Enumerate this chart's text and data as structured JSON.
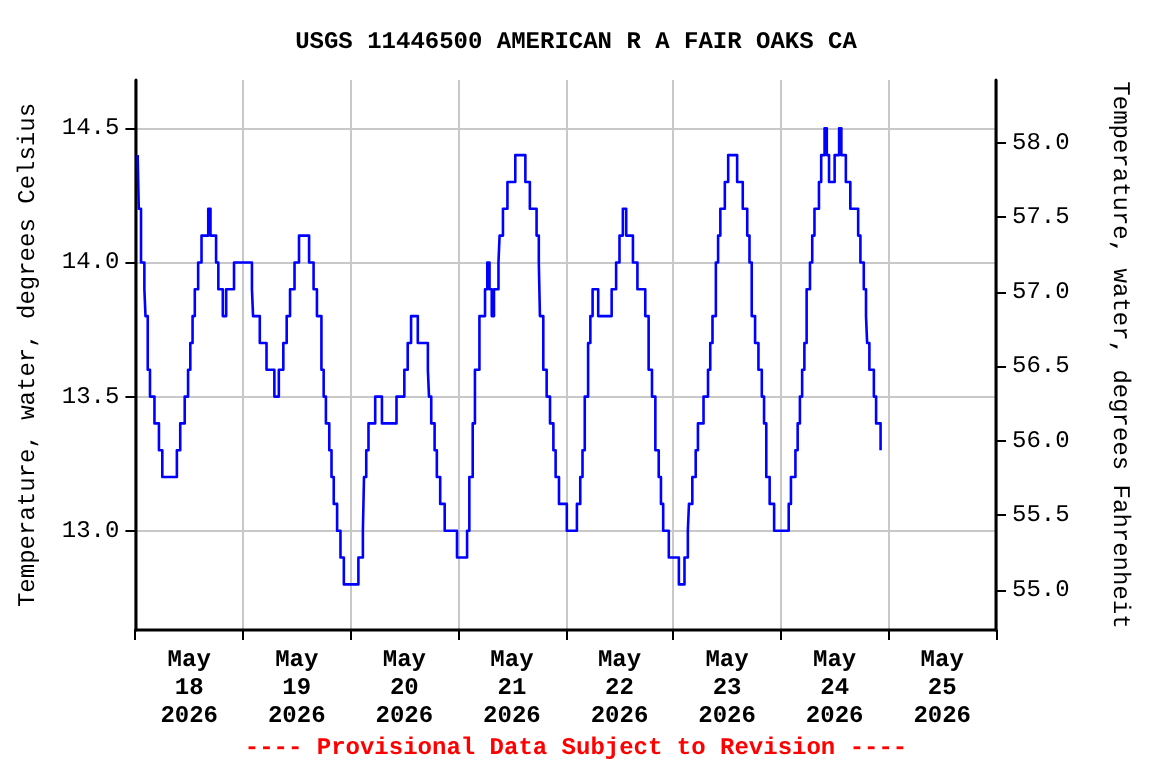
{
  "chart_data": {
    "type": "step",
    "title": "USGS 11446500 AMERICAN R A FAIR OAKS CA",
    "ylabel": "Temperature, water, degrees Celsius",
    "y2label": "Temperature, water, degrees Fahrenheit",
    "annotations": [
      "---- Provisional Data Subject to Revision ----"
    ],
    "xlim": [
      "2026-05-18T00:00",
      "2026-05-26T00:00"
    ],
    "xticks": [
      {
        "value": "2026-05-18T00:00",
        "label": null
      },
      {
        "value": "2026-05-18T12:00",
        "label": "May\n18\n2026"
      },
      {
        "value": "2026-05-19T00:00",
        "label": null
      },
      {
        "value": "2026-05-19T12:00",
        "label": "May\n19\n2026"
      },
      {
        "value": "2026-05-20T00:00",
        "label": null
      },
      {
        "value": "2026-05-20T12:00",
        "label": "May\n20\n2026"
      },
      {
        "value": "2026-05-21T00:00",
        "label": null
      },
      {
        "value": "2026-05-21T12:00",
        "label": "May\n21\n2026"
      },
      {
        "value": "2026-05-22T00:00",
        "label": null
      },
      {
        "value": "2026-05-22T12:00",
        "label": "May\n22\n2026"
      },
      {
        "value": "2026-05-23T00:00",
        "label": null
      },
      {
        "value": "2026-05-23T12:00",
        "label": "May\n23\n2026"
      },
      {
        "value": "2026-05-24T00:00",
        "label": null
      },
      {
        "value": "2026-05-24T12:00",
        "label": "May\n24\n2026"
      },
      {
        "value": "2026-05-25T00:00",
        "label": null
      },
      {
        "value": "2026-05-25T12:00",
        "label": "May\n25\n2026"
      },
      {
        "value": "2026-05-26T00:00",
        "label": null
      }
    ],
    "ylim": [
      12.63,
      14.68
    ],
    "yticks": [
      {
        "value": 13,
        "label": "13.0"
      },
      {
        "value": 13.5,
        "label": "13.5"
      },
      {
        "value": 14,
        "label": "14.0"
      },
      {
        "value": 14.5,
        "label": "14.5"
      }
    ],
    "y2lim": [
      54.73,
      58.42
    ],
    "y2ticks": [
      {
        "value": 55,
        "label": "55.0"
      },
      {
        "value": 55.5,
        "label": "55.5"
      },
      {
        "value": 56,
        "label": "56.0"
      },
      {
        "value": 56.5,
        "label": "56.5"
      },
      {
        "value": 57,
        "label": "57.0"
      },
      {
        "value": 57.5,
        "label": "57.5"
      },
      {
        "value": 58,
        "label": "58.0"
      }
    ],
    "grid": true,
    "series": [
      {
        "color": "#0000ff",
        "x": [
          "2026-05-18T00:30",
          "2026-05-18T00:45",
          "2026-05-18T01:15",
          "2026-05-18T02:00",
          "2026-05-18T02:15",
          "2026-05-18T02:45",
          "2026-05-18T03:15",
          "2026-05-18T04:15",
          "2026-05-18T05:15",
          "2026-05-18T06:00",
          "2026-05-18T09:15",
          "2026-05-18T10:00",
          "2026-05-18T11:00",
          "2026-05-18T11:45",
          "2026-05-18T12:15",
          "2026-05-18T12:45",
          "2026-05-18T13:15",
          "2026-05-18T14:00",
          "2026-05-18T14:45",
          "2026-05-18T16:15",
          "2026-05-18T16:45",
          "2026-05-18T18:00",
          "2026-05-18T18:30",
          "2026-05-18T19:30",
          "2026-05-18T20:15",
          "2026-05-18T22:00",
          "2026-05-19T02:00",
          "2026-05-19T02:15",
          "2026-05-19T03:45",
          "2026-05-19T05:15",
          "2026-05-19T07:00",
          "2026-05-19T08:00",
          "2026-05-19T09:00",
          "2026-05-19T09:45",
          "2026-05-19T10:30",
          "2026-05-19T11:30",
          "2026-05-19T12:30",
          "2026-05-19T14:45",
          "2026-05-19T15:45",
          "2026-05-19T16:30",
          "2026-05-19T17:30",
          "2026-05-19T18:00",
          "2026-05-19T18:30",
          "2026-05-19T19:15",
          "2026-05-19T19:45",
          "2026-05-19T20:15",
          "2026-05-19T21:00",
          "2026-05-19T21:45",
          "2026-05-19T22:30",
          "2026-05-20T01:45",
          "2026-05-20T02:45",
          "2026-05-20T03:00",
          "2026-05-20T03:30",
          "2026-05-20T04:00",
          "2026-05-20T05:30",
          "2026-05-20T07:00",
          "2026-05-20T10:15",
          "2026-05-20T12:00",
          "2026-05-20T12:45",
          "2026-05-20T13:30",
          "2026-05-20T15:00",
          "2026-05-20T17:15",
          "2026-05-20T17:30",
          "2026-05-20T18:00",
          "2026-05-20T18:45",
          "2026-05-20T19:15",
          "2026-05-20T20:00",
          "2026-05-20T21:00",
          "2026-05-20T23:45",
          "2026-05-21T02:00",
          "2026-05-21T02:30",
          "2026-05-21T03:15",
          "2026-05-21T03:45",
          "2026-05-21T04:45",
          "2026-05-21T06:00",
          "2026-05-21T06:30",
          "2026-05-21T07:00",
          "2026-05-21T07:30",
          "2026-05-21T08:00",
          "2026-05-21T09:00",
          "2026-05-21T09:15",
          "2026-05-21T10:00",
          "2026-05-21T11:00",
          "2026-05-21T12:45",
          "2026-05-21T15:00",
          "2026-05-21T16:00",
          "2026-05-21T17:30",
          "2026-05-21T18:00",
          "2026-05-21T18:15",
          "2026-05-21T19:00",
          "2026-05-21T19:45",
          "2026-05-21T20:30",
          "2026-05-21T21:15",
          "2026-05-21T21:45",
          "2026-05-21T22:30",
          "2026-05-22T00:15",
          "2026-05-22T02:30",
          "2026-05-22T03:15",
          "2026-05-22T03:45",
          "2026-05-22T04:15",
          "2026-05-22T05:00",
          "2026-05-22T05:30",
          "2026-05-22T06:00",
          "2026-05-22T07:15",
          "2026-05-22T10:15",
          "2026-05-22T11:15",
          "2026-05-22T12:00",
          "2026-05-22T12:45",
          "2026-05-22T13:30",
          "2026-05-22T15:00",
          "2026-05-22T16:00",
          "2026-05-22T17:45",
          "2026-05-22T18:30",
          "2026-05-22T19:15",
          "2026-05-22T20:00",
          "2026-05-22T20:45",
          "2026-05-22T21:15",
          "2026-05-22T21:45",
          "2026-05-22T23:00",
          "2026-05-23T01:15",
          "2026-05-23T02:30",
          "2026-05-23T03:15",
          "2026-05-23T03:30",
          "2026-05-23T04:15",
          "2026-05-23T05:00",
          "2026-05-23T05:30",
          "2026-05-23T06:45",
          "2026-05-23T07:45",
          "2026-05-23T08:15",
          "2026-05-23T08:45",
          "2026-05-23T09:30",
          "2026-05-23T10:00",
          "2026-05-23T10:30",
          "2026-05-23T11:30",
          "2026-05-23T12:15",
          "2026-05-23T14:15",
          "2026-05-23T15:30",
          "2026-05-23T16:30",
          "2026-05-23T17:00",
          "2026-05-23T17:30",
          "2026-05-23T18:15",
          "2026-05-23T19:00",
          "2026-05-23T19:45",
          "2026-05-23T20:15",
          "2026-05-23T20:45",
          "2026-05-23T21:30",
          "2026-05-23T22:30",
          "2026-05-24T01:45",
          "2026-05-24T02:15",
          "2026-05-24T03:15",
          "2026-05-24T03:45",
          "2026-05-24T04:15",
          "2026-05-24T04:45",
          "2026-05-24T05:15",
          "2026-05-24T05:45",
          "2026-05-24T06:30",
          "2026-05-24T07:00",
          "2026-05-24T07:30",
          "2026-05-24T08:30",
          "2026-05-24T09:00",
          "2026-05-24T09:45",
          "2026-05-24T10:15",
          "2026-05-24T10:45",
          "2026-05-24T12:00",
          "2026-05-24T13:00",
          "2026-05-24T13:30",
          "2026-05-24T14:30",
          "2026-05-24T15:30",
          "2026-05-24T17:15",
          "2026-05-24T17:45",
          "2026-05-24T18:30",
          "2026-05-24T19:00",
          "2026-05-24T19:15",
          "2026-05-24T19:45",
          "2026-05-24T20:45",
          "2026-05-24T21:15",
          "2026-05-24T22:15",
          "2026-05-24T22:30"
        ],
        "values": [
          14.4,
          14.2,
          14.0,
          13.9,
          13.8,
          13.6,
          13.5,
          13.4,
          13.3,
          13.2,
          13.3,
          13.4,
          13.5,
          13.6,
          13.7,
          13.8,
          13.9,
          14.0,
          14.1,
          14.2,
          14.1,
          14.0,
          13.9,
          13.8,
          13.9,
          14.0,
          13.9,
          13.8,
          13.7,
          13.6,
          13.5,
          13.6,
          13.7,
          13.8,
          13.9,
          14.0,
          14.1,
          14.0,
          13.9,
          13.8,
          13.6,
          13.5,
          13.4,
          13.3,
          13.2,
          13.1,
          13.0,
          12.9,
          12.8,
          12.9,
          13.0,
          13.2,
          13.3,
          13.4,
          13.5,
          13.4,
          13.5,
          13.6,
          13.7,
          13.8,
          13.7,
          13.6,
          13.5,
          13.4,
          13.3,
          13.2,
          13.1,
          13.0,
          12.9,
          13.0,
          13.2,
          13.4,
          13.6,
          13.8,
          13.9,
          14.0,
          13.9,
          13.8,
          13.9,
          14.0,
          14.1,
          14.2,
          14.3,
          14.4,
          14.3,
          14.2,
          14.1,
          14.0,
          13.8,
          13.6,
          13.5,
          13.4,
          13.3,
          13.2,
          13.1,
          13.0,
          13.1,
          13.2,
          13.3,
          13.5,
          13.7,
          13.8,
          13.9,
          13.8,
          13.9,
          14.0,
          14.1,
          14.2,
          14.1,
          14.0,
          13.9,
          13.8,
          13.6,
          13.5,
          13.3,
          13.2,
          13.1,
          13.0,
          12.9,
          12.8,
          12.9,
          13.0,
          13.1,
          13.2,
          13.3,
          13.4,
          13.5,
          13.6,
          13.7,
          13.8,
          14.0,
          14.1,
          14.2,
          14.3,
          14.4,
          14.3,
          14.2,
          14.1,
          14.0,
          13.8,
          13.7,
          13.6,
          13.5,
          13.4,
          13.2,
          13.1,
          13.0,
          13.1,
          13.2,
          13.3,
          13.4,
          13.5,
          13.6,
          13.7,
          13.9,
          14.0,
          14.1,
          14.2,
          14.3,
          14.4,
          14.5,
          14.4,
          14.3,
          14.4,
          14.5,
          14.4,
          14.3,
          14.2,
          14.1,
          14.0,
          13.9,
          13.8,
          13.7,
          13.6,
          13.5,
          13.4,
          13.3,
          13.3
        ]
      }
    ]
  }
}
